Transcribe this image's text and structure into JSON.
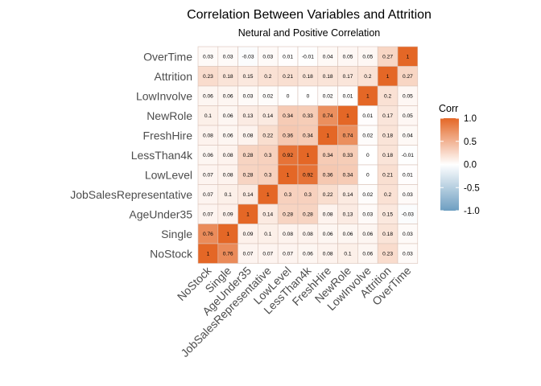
{
  "chart_data": {
    "type": "heatmap",
    "title": "Correlation Between Variables and Attrition",
    "subtitle": "Netural and Positive Correlation",
    "variables": [
      "NoStock",
      "Single",
      "AgeUnder35",
      "JobSalesRepresentative",
      "LowLevel",
      "LessThan4k",
      "FreshHire",
      "NewRole",
      "LowInvolve",
      "Attrition",
      "OverTime"
    ],
    "matrix": [
      [
        1,
        0.76,
        0.07,
        0.07,
        0.07,
        0.06,
        0.08,
        0.1,
        0.06,
        0.23,
        0.03
      ],
      [
        0.76,
        1,
        0.09,
        0.1,
        0.08,
        0.08,
        0.06,
        0.06,
        0.06,
        0.18,
        0.03
      ],
      [
        0.07,
        0.09,
        1,
        0.14,
        0.28,
        0.28,
        0.08,
        0.13,
        0.03,
        0.15,
        -0.03
      ],
      [
        0.07,
        0.1,
        0.14,
        1,
        0.3,
        0.3,
        0.22,
        0.14,
        0.02,
        0.2,
        0.03
      ],
      [
        0.07,
        0.08,
        0.28,
        0.3,
        1,
        0.92,
        0.36,
        0.34,
        0,
        0.21,
        0.01
      ],
      [
        0.06,
        0.08,
        0.28,
        0.3,
        0.92,
        1,
        0.34,
        0.33,
        0,
        0.18,
        -0.01
      ],
      [
        0.08,
        0.06,
        0.08,
        0.22,
        0.36,
        0.34,
        1,
        0.74,
        0.02,
        0.18,
        0.04
      ],
      [
        0.1,
        0.06,
        0.13,
        0.14,
        0.34,
        0.33,
        0.74,
        1,
        0.01,
        0.17,
        0.05
      ],
      [
        0.06,
        0.06,
        0.03,
        0.02,
        0,
        0,
        0.02,
        0.01,
        1,
        0.2,
        0.05
      ],
      [
        0.23,
        0.18,
        0.15,
        0.2,
        0.21,
        0.18,
        0.18,
        0.17,
        0.2,
        1,
        0.27
      ],
      [
        0.03,
        0.03,
        -0.03,
        0.03,
        0.01,
        -0.01,
        0.04,
        0.05,
        0.05,
        0.27,
        1
      ]
    ],
    "color_low": "#6d9ec1",
    "color_mid": "#ffffff",
    "color_high": "#e46726",
    "legend": {
      "title": "Corr",
      "position": "right",
      "ticks": [
        1.0,
        0.5,
        0.0,
        -0.5,
        -1.0
      ],
      "tick_labels": [
        "1.0",
        "0.5",
        "0.0",
        "-0.5",
        "-1.0"
      ],
      "range": [
        -1,
        1
      ]
    }
  }
}
